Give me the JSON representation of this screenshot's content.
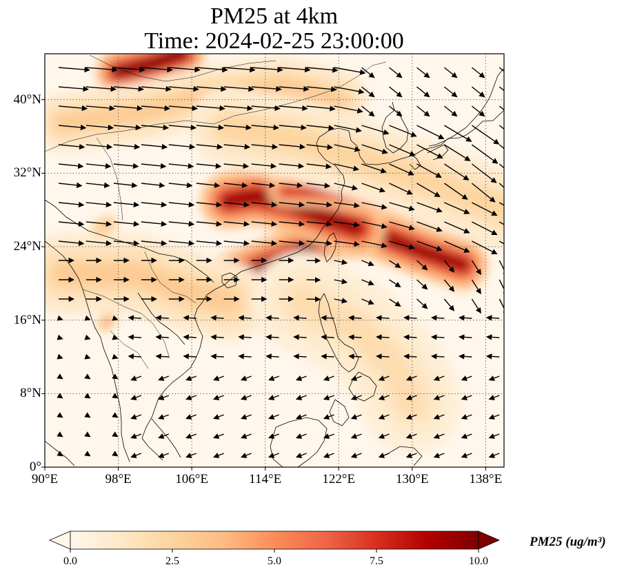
{
  "map": {
    "title_line1": "PM25 at 4km",
    "title_line2": "Time: 2024-02-25 23:00:00",
    "extent": {
      "lon_min": 90,
      "lon_max": 140,
      "lat_min": 0,
      "lat_max": 45
    },
    "lat_ticks": [
      {
        "value": 0,
        "label": "0°"
      },
      {
        "value": 8,
        "label": "8°N"
      },
      {
        "value": 16,
        "label": "16°N"
      },
      {
        "value": 24,
        "label": "24°N"
      },
      {
        "value": 32,
        "label": "32°N"
      },
      {
        "value": 40,
        "label": "40°N"
      }
    ],
    "lon_ticks": [
      {
        "value": 90,
        "label": "90°E"
      },
      {
        "value": 98,
        "label": "98°E"
      },
      {
        "value": 106,
        "label": "106°E"
      },
      {
        "value": 114,
        "label": "114°E"
      },
      {
        "value": 122,
        "label": "122°E"
      },
      {
        "value": 130,
        "label": "130°E"
      },
      {
        "value": 138,
        "label": "138°E"
      }
    ],
    "gridlines": true,
    "plumes": [
      {
        "name": "south-china-coast-band",
        "path": [
          [
            110,
            20.5
          ],
          [
            114,
            22
          ],
          [
            118,
            23.5
          ],
          [
            121,
            25.5
          ],
          [
            126,
            25.5
          ],
          [
            131,
            23.5
          ],
          [
            135.5,
            22
          ]
        ],
        "level": 9.5,
        "width_deg": 2.5
      },
      {
        "name": "yangtze-band",
        "path": [
          [
            110,
            29
          ],
          [
            113,
            29.5
          ],
          [
            117,
            28.5
          ],
          [
            121,
            27
          ],
          [
            124,
            26
          ]
        ],
        "level": 9.5,
        "width_deg": 2.8
      },
      {
        "name": "east-china-sea-band",
        "path": [
          [
            116,
            30
          ],
          [
            120,
            30
          ],
          [
            124,
            29.5
          ],
          [
            127,
            29
          ]
        ],
        "level": 8,
        "width_deg": 1.5
      },
      {
        "name": "mongolia-plume",
        "path": [
          [
            98,
            43
          ],
          [
            102,
            44
          ],
          [
            105,
            45
          ]
        ],
        "level": 10,
        "width_deg": 2.2
      },
      {
        "name": "north-china-plume",
        "path": [
          [
            105,
            39
          ],
          [
            108,
            40
          ],
          [
            110,
            41.5
          ]
        ],
        "level": 7,
        "width_deg": 2
      },
      {
        "name": "tibet-haze",
        "path": [
          [
            92,
            37.5
          ],
          [
            100,
            38.5
          ],
          [
            108,
            40.5
          ],
          [
            116,
            41.5
          ],
          [
            122,
            40
          ]
        ],
        "level": 3,
        "width_deg": 3
      },
      {
        "name": "yellow-sea-haze",
        "path": [
          [
            110,
            37
          ],
          [
            118,
            35.5
          ],
          [
            126,
            33
          ],
          [
            132,
            31
          ],
          [
            140,
            28
          ]
        ],
        "level": 2.5,
        "width_deg": 4
      },
      {
        "name": "indochina-haze",
        "path": [
          [
            92,
            21
          ],
          [
            100,
            21
          ],
          [
            106,
            19
          ],
          [
            110,
            18
          ]
        ],
        "level": 3,
        "width_deg": 4
      },
      {
        "name": "pacific-haze",
        "path": [
          [
            118,
            18
          ],
          [
            124,
            15
          ],
          [
            128,
            11
          ],
          [
            130,
            7
          ]
        ],
        "level": 2,
        "width_deg": 5
      },
      {
        "name": "myanmar-spot",
        "path": [
          [
            96,
            26
          ],
          [
            97,
            26.5
          ]
        ],
        "level": 4,
        "width_deg": 1
      },
      {
        "name": "vietnam-spot",
        "path": [
          [
            96.5,
            15.5
          ],
          [
            97,
            16
          ]
        ],
        "level": 5,
        "width_deg": 0.8
      }
    ]
  },
  "colorbar": {
    "label": "PM25 (ug/m³)",
    "vmin": 0,
    "vmax": 10,
    "ticks": [
      "0.0",
      "2.5",
      "5.0",
      "7.5",
      "10.0"
    ],
    "tick_values": [
      0,
      2.5,
      5,
      7.5,
      10
    ],
    "colormap": "OrRd",
    "extend": "both",
    "colors": [
      "#fff7ec",
      "#fee8c8",
      "#fdd49e",
      "#fdbb84",
      "#fc8d59",
      "#ef6548",
      "#d7301f",
      "#b30000",
      "#7f0000"
    ]
  }
}
